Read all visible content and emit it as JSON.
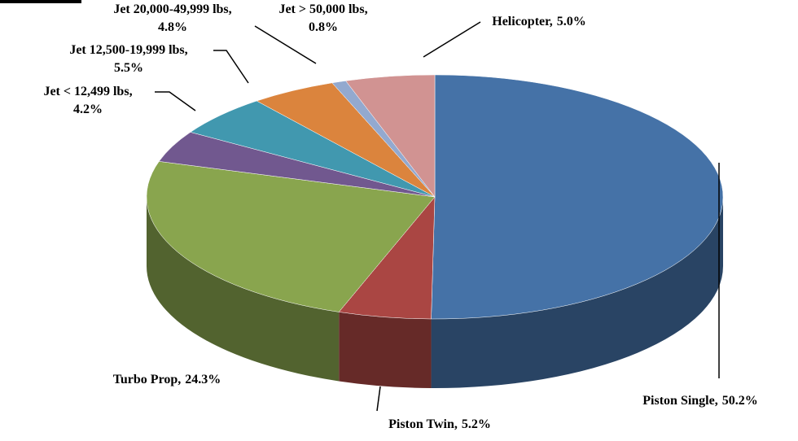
{
  "chart_data": {
    "type": "pie3d",
    "categories": [
      "Piston Single",
      "Piston Twin",
      "Turbo Prop",
      "Jet < 12,499 lbs",
      "Jet 12,500-19,999 lbs",
      "Jet 20,000-49,999 lbs",
      "Jet > 50,000 lbs",
      "Helicopter"
    ],
    "values": [
      50.2,
      5.2,
      24.3,
      4.2,
      5.5,
      4.8,
      0.8,
      5.0
    ],
    "value_labels": [
      "50.2%",
      "5.2%",
      "24.3%",
      "4.2%",
      "5.5%",
      "4.8%",
      "0.8%",
      "5.0%"
    ],
    "colors": [
      "#4572a7",
      "#aa4643",
      "#89a54e",
      "#71588f",
      "#4198af",
      "#db843d",
      "#93a9cf",
      "#d19392"
    ]
  }
}
